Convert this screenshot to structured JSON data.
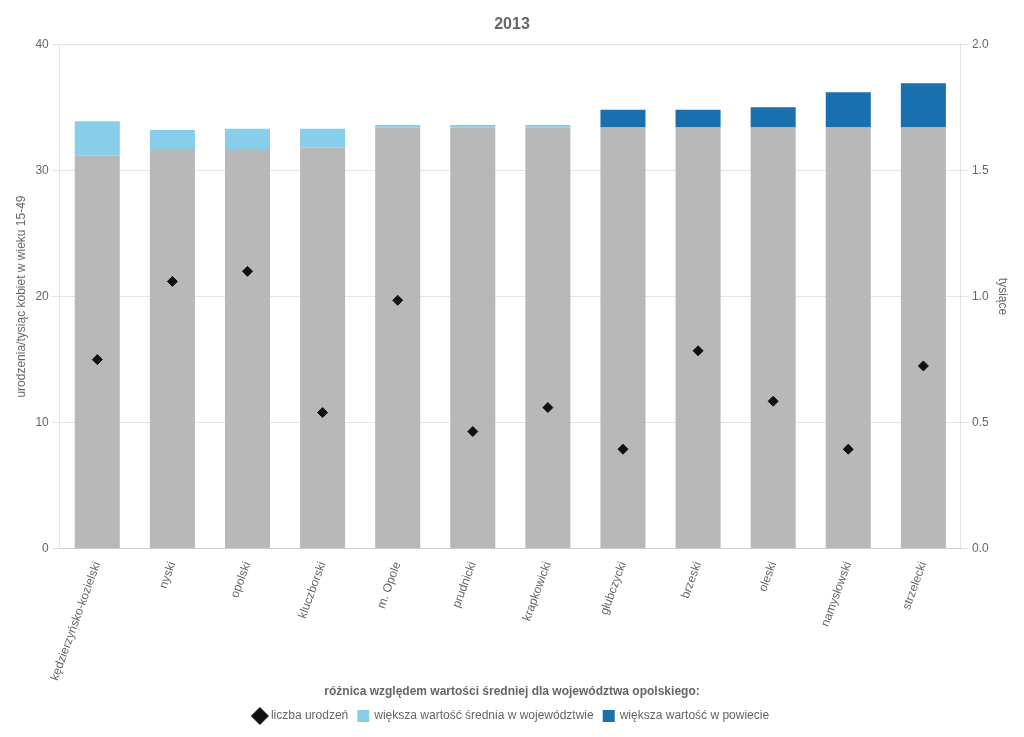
{
  "chart_data": {
    "type": "bar",
    "title": "2013",
    "categories": [
      "kędzierzyńsko-kozielski",
      "nyski",
      "opolski",
      "kluczborski",
      "m. Opole",
      "prudnicki",
      "krapkowicki",
      "głubczycki",
      "brzeski",
      "oleski",
      "namysłowski",
      "strzelecki"
    ],
    "stacked": true,
    "series": [
      {
        "type": "bar",
        "color": "#b8b8b8",
        "values": [
          31.2,
          31.7,
          31.7,
          31.8,
          33.4,
          33.4,
          33.4,
          33.4,
          33.4,
          33.4,
          33.4,
          33.4
        ]
      },
      {
        "type": "bar",
        "name": "większa wartość średnia w województwie",
        "color": "#87ceeb",
        "values": [
          2.7,
          1.5,
          1.6,
          1.5,
          0.2,
          0.2,
          0.2,
          null,
          null,
          null,
          null,
          null
        ]
      },
      {
        "type": "bar",
        "name": "większa wartość w powiecie",
        "color": "#1a6faf",
        "values": [
          null,
          null,
          null,
          null,
          null,
          null,
          null,
          1.4,
          1.4,
          1.6,
          2.8,
          3.5
        ]
      },
      {
        "type": "scatter",
        "name": "liczba urodzeń",
        "marker": "diamond",
        "color": "#111111",
        "values": [
          15.0,
          21.2,
          22.0,
          10.8,
          19.7,
          9.3,
          11.2,
          7.9,
          15.7,
          11.7,
          7.9,
          14.5
        ]
      }
    ],
    "ylabel": "urodzenia/tysiąc kobiet w wieku 15-49",
    "y2label": "tysiące",
    "ylim": [
      0,
      40
    ],
    "yticks": [
      0,
      10,
      20,
      30,
      40
    ],
    "y2lim": [
      0,
      2
    ],
    "y2ticks": [
      {
        "value": 0,
        "label": "0.0"
      },
      0.5,
      {
        "value": 1,
        "label": "1.0"
      },
      1.5,
      {
        "value": 2,
        "label": "2.0"
      }
    ],
    "grid": true,
    "legend": "bottom",
    "legend_title": "różnica względem wartości średniej dla województwa opolskiego:"
  }
}
